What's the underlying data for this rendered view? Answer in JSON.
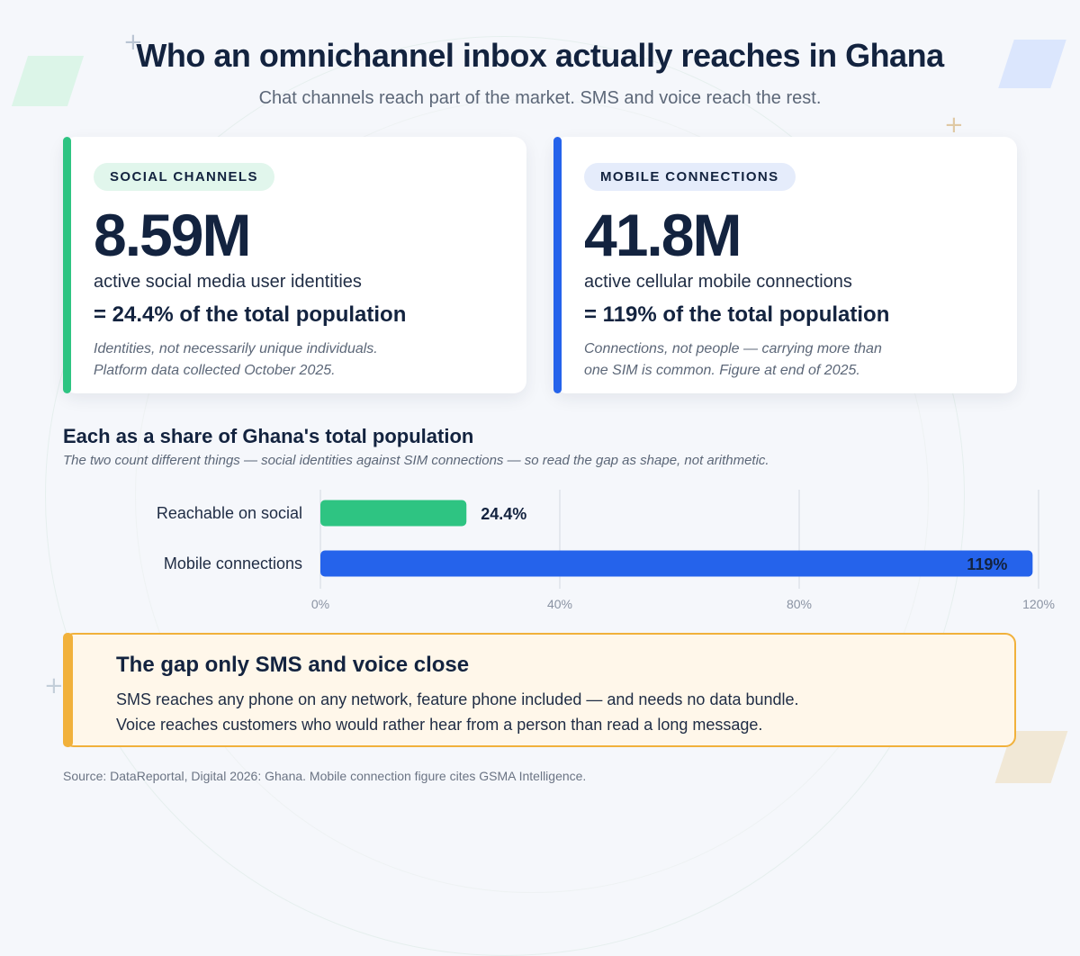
{
  "header": {
    "title": "Who an omnichannel inbox actually reaches in Ghana",
    "subtitle": "Chat channels reach part of the market. SMS and voice reach the rest."
  },
  "cards": [
    {
      "tag": "SOCIAL CHANNELS",
      "value": "8.59M",
      "description": "active social media user identities",
      "share": "= 24.4% of the total population",
      "note_line1": "Identities, not necessarily unique individuals.",
      "note_line2": "Platform data collected October 2025.",
      "accent": "#2ec482",
      "tag_bg": "#e1f6ec"
    },
    {
      "tag": "MOBILE CONNECTIONS",
      "value": "41.8M",
      "description": "active cellular mobile connections",
      "share": "= 119% of the total population",
      "note_line1": "Connections, not people — carrying more than",
      "note_line2": "one SIM is common. Figure at end of 2025.",
      "accent": "#2563eb",
      "tag_bg": "#e5ecfb"
    }
  ],
  "chart_section": {
    "title": "Each as a share of Ghana's total population",
    "subtitle": "The two count different things — social identities against SIM connections — so read the gap as shape, not arithmetic."
  },
  "chart_data": {
    "type": "bar",
    "orientation": "horizontal",
    "categories": [
      "Reachable on social",
      "Mobile connections"
    ],
    "values": [
      24.4,
      119
    ],
    "value_labels": [
      "24.4%",
      "119%"
    ],
    "colors": [
      "#2ec482",
      "#2563eb"
    ],
    "xlim": [
      0,
      120
    ],
    "xticks": [
      "0%",
      "40%",
      "80%",
      "120%"
    ],
    "grid": true,
    "legend": "none"
  },
  "callout": {
    "title": "The gap only SMS and voice close",
    "line1": "SMS reaches any phone on any network, feature phone included — and needs no data bundle.",
    "line2": "Voice reaches customers who would rather hear from a person than read a long message."
  },
  "footer": {
    "source": "Source: DataReportal, Digital 2026: Ghana. Mobile connection figure cites GSMA Intelligence."
  }
}
